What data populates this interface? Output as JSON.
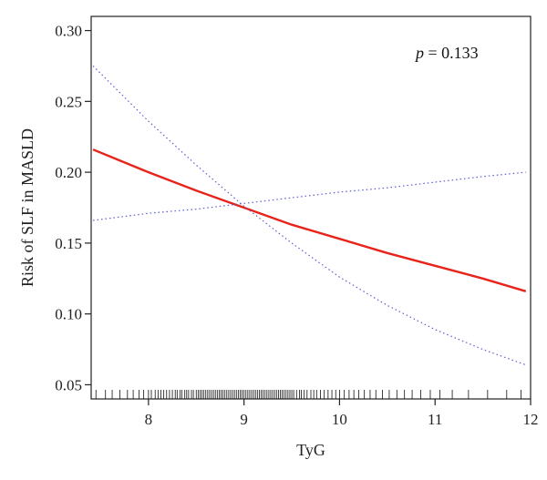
{
  "chart_data": {
    "type": "line",
    "title": "",
    "xlabel": "TyG",
    "ylabel": "Risk of SLF in MASLD",
    "xlim": [
      7.4,
      12.0
    ],
    "ylim": [
      0.04,
      0.31
    ],
    "xticks": [
      8,
      9,
      10,
      11,
      12
    ],
    "yticks": [
      0.05,
      0.1,
      0.15,
      0.2,
      0.25,
      0.3
    ],
    "xtick_labels": [
      "8",
      "9",
      "10",
      "11",
      "12"
    ],
    "ytick_labels": [
      "0.05",
      "0.10",
      "0.15",
      "0.20",
      "0.25",
      "0.30"
    ],
    "annotation": {
      "symbol": "p",
      "text": " = 0.133"
    },
    "grid": false,
    "legend": "none",
    "colors": {
      "fit": "#e8231a",
      "ci": "#5b5bd6",
      "axis": "#222222",
      "rug": "#111111"
    },
    "series": [
      {
        "role": "fit",
        "style": "solid",
        "x": [
          7.42,
          8.0,
          8.5,
          9.0,
          9.5,
          10.0,
          10.5,
          11.0,
          11.5,
          11.95
        ],
        "y": [
          0.216,
          0.2,
          0.187,
          0.175,
          0.163,
          0.153,
          0.143,
          0.134,
          0.125,
          0.116
        ]
      },
      {
        "role": "ci_upper",
        "style": "dotted",
        "x": [
          7.42,
          8.0,
          8.5,
          9.0,
          9.5,
          10.0,
          10.5,
          11.0,
          11.5,
          11.95
        ],
        "y": [
          0.275,
          0.236,
          0.205,
          0.176,
          0.15,
          0.126,
          0.106,
          0.089,
          0.075,
          0.064
        ]
      },
      {
        "role": "ci_lower",
        "style": "dotted",
        "x": [
          7.42,
          8.0,
          8.5,
          9.0,
          9.5,
          10.0,
          10.5,
          11.0,
          11.5,
          11.95
        ],
        "y": [
          0.166,
          0.171,
          0.174,
          0.178,
          0.182,
          0.186,
          0.189,
          0.193,
          0.197,
          0.2
        ]
      }
    ],
    "rug_x": [
      7.45,
      7.55,
      7.62,
      7.7,
      7.78,
      7.84,
      7.9,
      7.95,
      8.0,
      8.03,
      8.07,
      8.1,
      8.13,
      8.16,
      8.19,
      8.22,
      8.25,
      8.28,
      8.3,
      8.33,
      8.35,
      8.38,
      8.4,
      8.42,
      8.45,
      8.47,
      8.5,
      8.52,
      8.54,
      8.56,
      8.58,
      8.6,
      8.62,
      8.64,
      8.66,
      8.68,
      8.7,
      8.72,
      8.74,
      8.76,
      8.78,
      8.8,
      8.82,
      8.84,
      8.86,
      8.88,
      8.9,
      8.92,
      8.94,
      8.96,
      8.98,
      9.0,
      9.02,
      9.04,
      9.06,
      9.08,
      9.1,
      9.12,
      9.14,
      9.16,
      9.18,
      9.2,
      9.22,
      9.24,
      9.26,
      9.28,
      9.3,
      9.32,
      9.34,
      9.36,
      9.38,
      9.4,
      9.42,
      9.44,
      9.46,
      9.48,
      9.5,
      9.52,
      9.55,
      9.58,
      9.6,
      9.63,
      9.66,
      9.7,
      9.73,
      9.76,
      9.8,
      9.84,
      9.88,
      9.92,
      9.96,
      10.0,
      10.05,
      10.1,
      10.15,
      10.2,
      10.26,
      10.32,
      10.38,
      10.45,
      10.52,
      10.6,
      10.68,
      10.76,
      10.85,
      10.95,
      11.05,
      11.18,
      11.35,
      11.55,
      11.75,
      11.9
    ]
  }
}
